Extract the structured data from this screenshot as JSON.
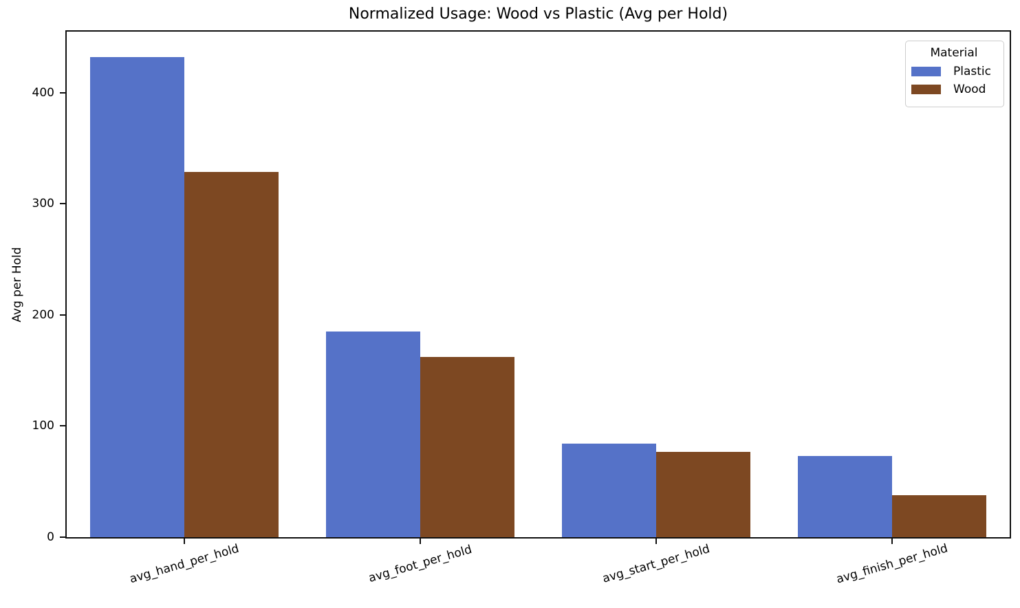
{
  "figure": {
    "title": "Normalized Usage: Wood vs Plastic (Avg per Hold)",
    "ylabel": "Avg per Hold",
    "background_color": "#ffffff",
    "spine_color": "#0f0f0f",
    "text_color": "#000000"
  },
  "legend": {
    "title": "Material",
    "items": [
      {
        "label": "Plastic",
        "color": "#5572C8"
      },
      {
        "label": "Wood",
        "color": "#7D4822"
      }
    ]
  },
  "chart_data": {
    "type": "bar",
    "title": "Normalized Usage: Wood vs Plastic (Avg per Hold)",
    "xlabel": "",
    "ylabel": "Avg per Hold",
    "categories": [
      "avg_hand_per_hold",
      "avg_foot_per_hold",
      "avg_start_per_hold",
      "avg_finish_per_hold"
    ],
    "series": [
      {
        "name": "Plastic",
        "color": "#5572C8",
        "values": [
          432,
          185,
          84,
          73
        ]
      },
      {
        "name": "Wood",
        "color": "#7D4822",
        "values": [
          329,
          162,
          77,
          38
        ]
      }
    ],
    "yticks": [
      0,
      100,
      200,
      300,
      400
    ],
    "ylim": [
      0,
      455
    ],
    "grid": false,
    "legend_position": "upper right",
    "legend_title": "Material",
    "xtick_rotation_deg": 16,
    "bar_width_fraction": 0.4
  }
}
